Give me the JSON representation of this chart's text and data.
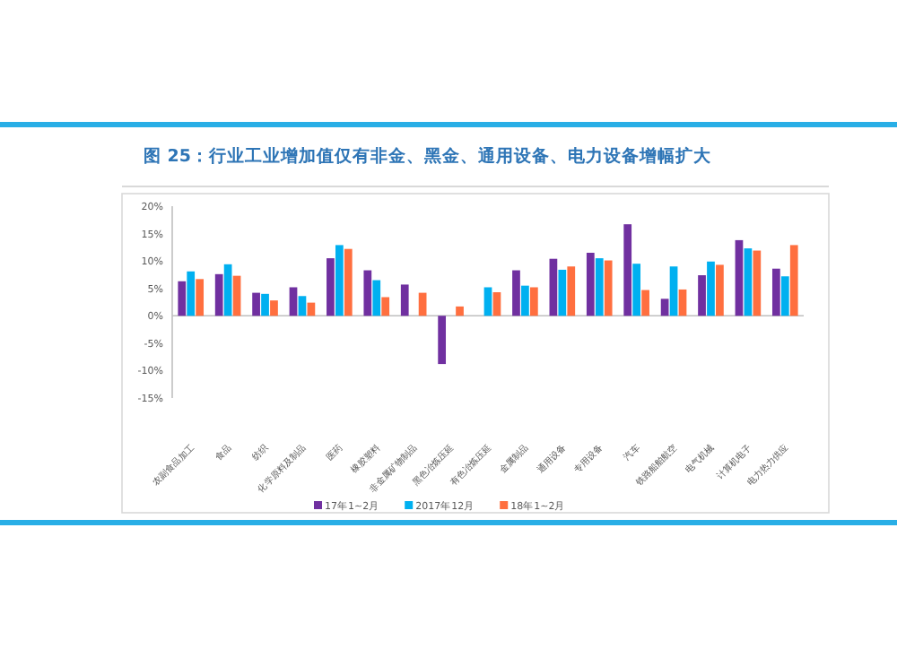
{
  "chart_data": {
    "type": "bar",
    "title": "图 25：行业工业增加值仅有非金、黑金、通用设备、电力设备增幅扩大",
    "categories": [
      "农副食品加工",
      "食品",
      "纺织",
      "化学原料及制品",
      "医药",
      "橡胶塑料",
      "非金属矿物制品",
      "黑色冶炼压延",
      "有色冶炼压延",
      "金属制品",
      "通用设备",
      "专用设备",
      "汽车",
      "铁路船舶航空",
      "电气机械",
      "计算机电子",
      "电力热力供应"
    ],
    "series": [
      {
        "name": "17年1~2月",
        "color": "#7030a0",
        "values": [
          6.3,
          7.6,
          4.2,
          5.2,
          10.5,
          8.3,
          5.7,
          -8.8,
          null,
          8.3,
          10.4,
          11.5,
          16.7,
          3.1,
          7.4,
          13.8,
          8.6
        ]
      },
      {
        "name": "2017年12月",
        "color": "#00b0f0",
        "values": [
          8.1,
          9.4,
          4.0,
          3.6,
          12.9,
          6.5,
          null,
          null,
          5.2,
          5.5,
          8.4,
          10.5,
          9.5,
          9.0,
          9.9,
          12.3,
          7.2
        ]
      },
      {
        "name": "18年1~2月",
        "color": "#ff6f3f",
        "values": [
          6.7,
          7.3,
          2.8,
          2.4,
          12.2,
          3.4,
          4.2,
          1.7,
          4.3,
          5.2,
          9.0,
          10.1,
          4.7,
          4.8,
          9.3,
          11.9,
          12.9
        ]
      }
    ],
    "ylim": [
      -15,
      20
    ],
    "yticks": [
      {
        "value": -15,
        "label": "-15%"
      },
      {
        "value": -10,
        "label": "-10%"
      },
      {
        "value": -5,
        "label": "-5%"
      },
      {
        "value": 0,
        "label": "0%"
      },
      {
        "value": 5,
        "label": "5%"
      },
      {
        "value": 10,
        "label": "10%"
      },
      {
        "value": 15,
        "label": "15%"
      },
      {
        "value": 20,
        "label": "20%"
      }
    ],
    "legend": "bottom"
  }
}
